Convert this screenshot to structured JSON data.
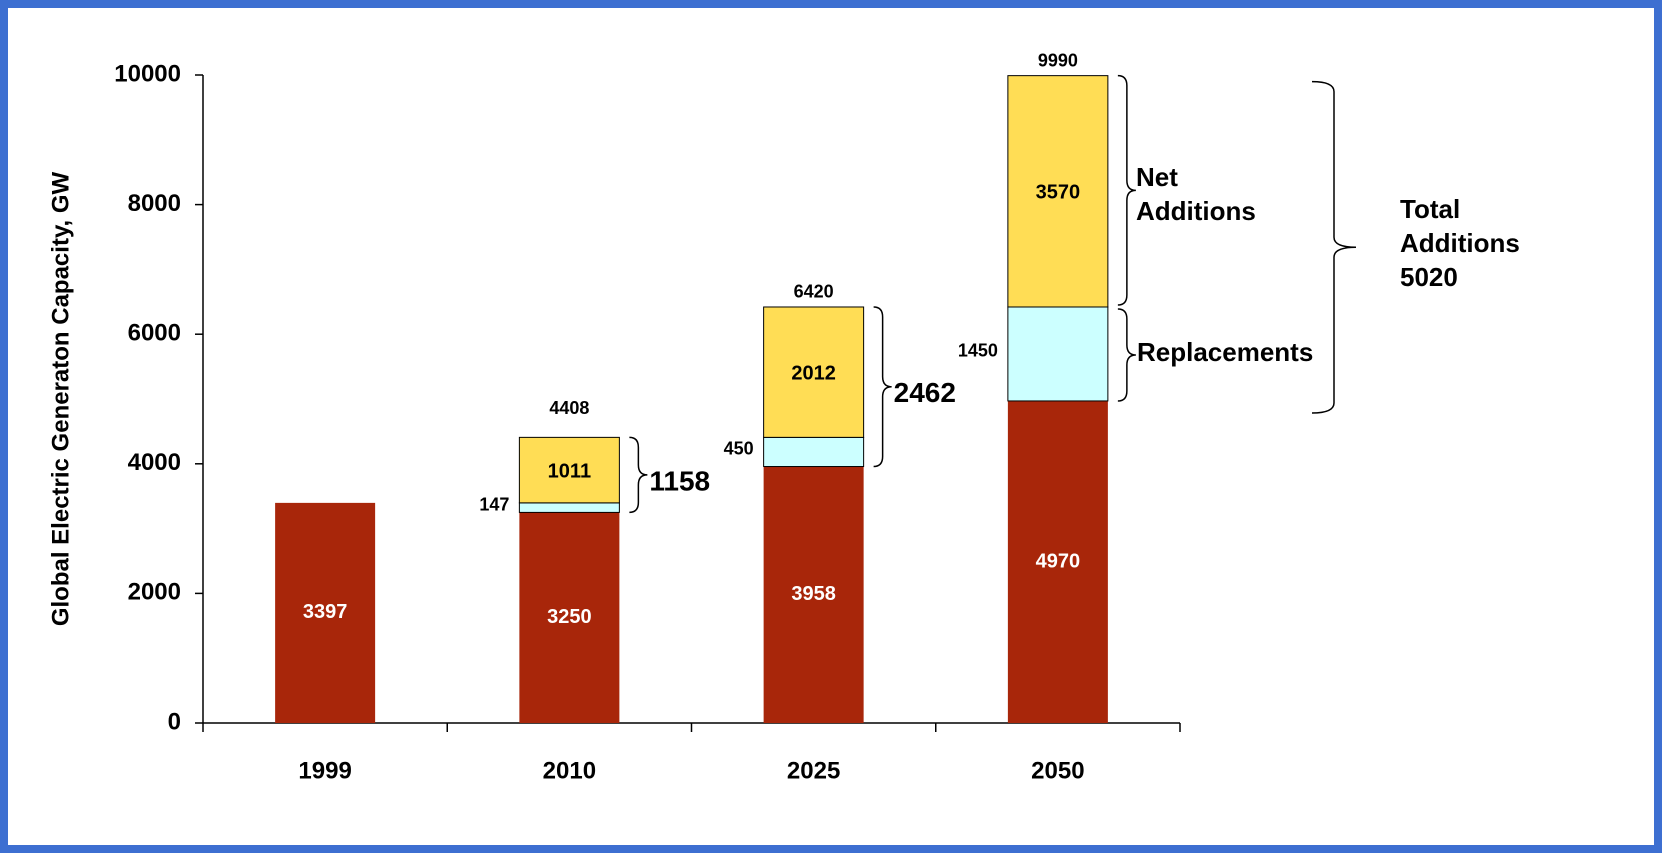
{
  "chart_data": {
    "type": "stacked_bar",
    "y_label": "Global Electric Generaton Capacity, GW",
    "categories": [
      "1999",
      "2010",
      "2025",
      "2050"
    ],
    "series": [
      {
        "color": "#a8260a",
        "values": [
          3397,
          3250,
          3958,
          4970
        ]
      },
      {
        "name": "Replacements",
        "color": "#ccffff",
        "values": [
          null,
          147,
          450,
          1450
        ]
      },
      {
        "name": "Net Additions",
        "color": "#ffdd55",
        "values": [
          null,
          1011,
          2012,
          3570
        ]
      }
    ],
    "totals": [
      null,
      4408,
      6420,
      9990
    ],
    "addition_totals": [
      null,
      1158,
      2462,
      5020
    ],
    "total_additions_label": "Total Additions",
    "ylim": [
      0,
      10000
    ],
    "yticks": [
      0,
      2000,
      4000,
      6000,
      8000,
      10000
    ]
  }
}
